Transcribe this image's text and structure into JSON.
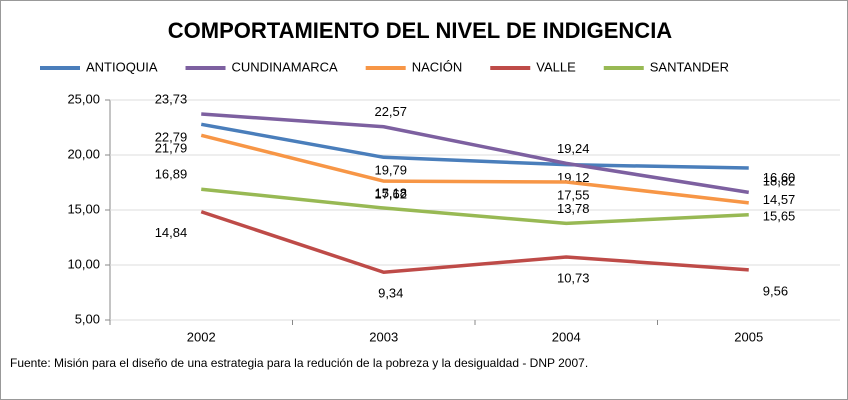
{
  "chart_data": {
    "type": "line",
    "title": "COMPORTAMIENTO DEL NIVEL DE INDIGENCIA",
    "categories": [
      "2002",
      "2003",
      "2004",
      "2005"
    ],
    "series": [
      {
        "name": "ANTIOQUIA",
        "color": "#4a7ebb",
        "values": [
          22.79,
          19.79,
          19.12,
          18.82
        ],
        "value_labels": [
          "22,79",
          "19,79",
          "19,12",
          "18,82"
        ]
      },
      {
        "name": "CUNDINAMARCA",
        "color": "#7d60a0",
        "values": [
          23.73,
          22.57,
          19.24,
          16.6
        ],
        "value_labels": [
          "23,73",
          "22,57",
          "19,24",
          "16,60"
        ]
      },
      {
        "name": "NACIÓN",
        "color": "#f79646",
        "values": [
          21.79,
          17.62,
          17.55,
          15.65
        ],
        "value_labels": [
          "21,79",
          "17,62",
          "17,55",
          "15,65"
        ]
      },
      {
        "name": "VALLE",
        "color": "#be4b48",
        "values": [
          14.84,
          9.34,
          10.73,
          9.56
        ],
        "value_labels": [
          "14,84",
          "9,34",
          "10,73",
          "9,56"
        ]
      },
      {
        "name": "SANTANDER",
        "color": "#98b954",
        "values": [
          16.89,
          15.18,
          13.78,
          14.57
        ],
        "value_labels": [
          "16,89",
          "15,18",
          "13,78",
          "14,57"
        ]
      }
    ],
    "ylim": [
      5,
      25
    ],
    "yticks": [
      {
        "value": 5,
        "label": "5,00"
      },
      {
        "value": 10,
        "label": "10,00"
      },
      {
        "value": 15,
        "label": "15,00"
      },
      {
        "value": 20,
        "label": "20,00"
      },
      {
        "value": 25,
        "label": "25,00"
      }
    ],
    "grid": true,
    "legend": "top",
    "note": "Fuente:  Misión para el diseño de una estrategia para la redución de la pobreza  y la desigualdad - DNP 2007."
  }
}
